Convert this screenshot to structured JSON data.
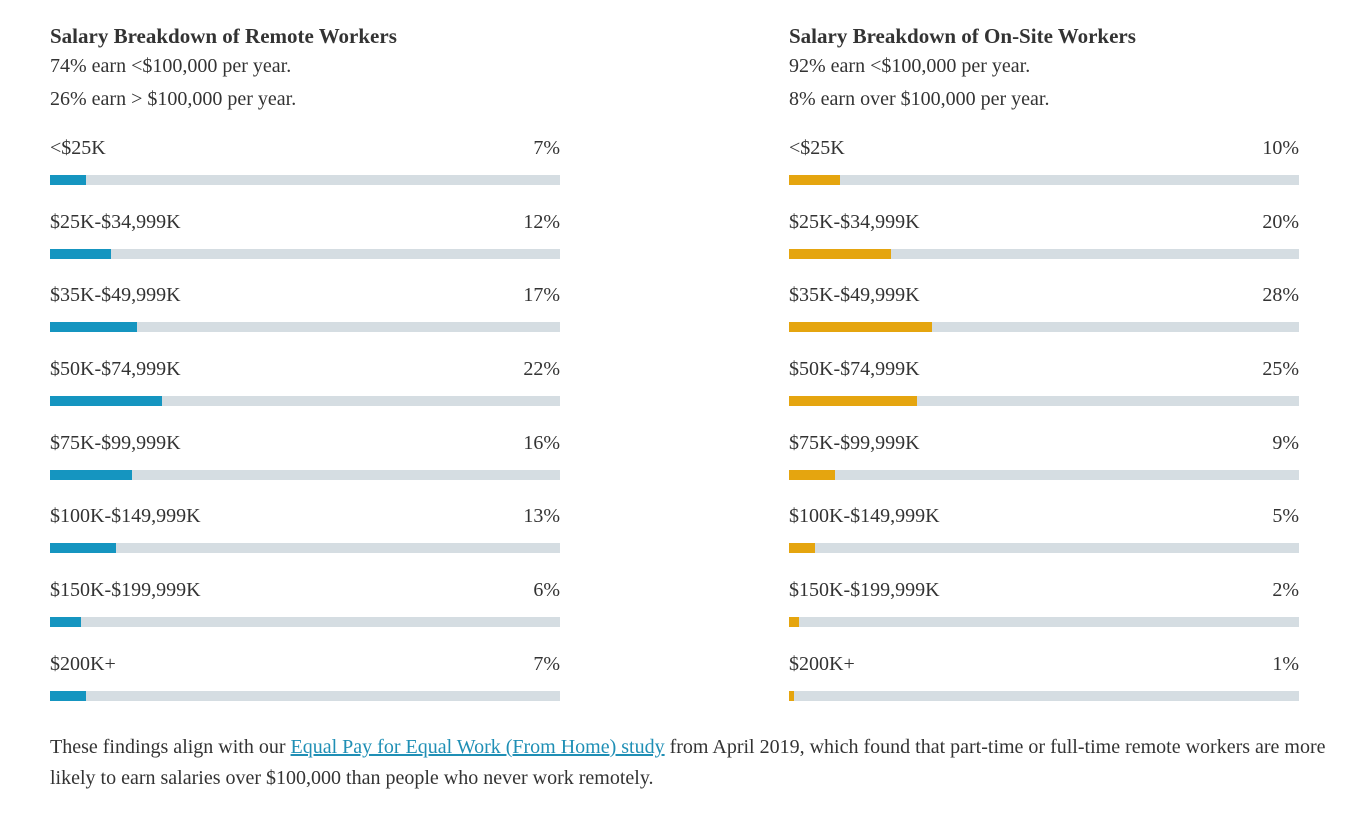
{
  "colors": {
    "remote": "#1595c0",
    "onsite": "#e5a50f",
    "track": "#d5dde2"
  },
  "chart_data": [
    {
      "type": "bar",
      "orientation": "horizontal",
      "title": "Salary Breakdown of Remote Workers",
      "summary": [
        "74% earn <$100,000 per year.",
        "26% earn > $100,000 per year."
      ],
      "categories": [
        "<$25K",
        "$25K-$34,999K",
        "$35K-$49,999K",
        "$50K-$74,999K",
        "$75K-$99,999K",
        "$100K-$149,999K",
        "$150K-$199,999K",
        "$200K+"
      ],
      "values": [
        7,
        12,
        17,
        22,
        16,
        13,
        6,
        7
      ],
      "labels": [
        "7%",
        "12%",
        "17%",
        "22%",
        "16%",
        "13%",
        "6%",
        "7%"
      ],
      "xlim": [
        0,
        100
      ],
      "unit": "%"
    },
    {
      "type": "bar",
      "orientation": "horizontal",
      "title": "Salary Breakdown of On-Site Workers",
      "summary": [
        "92% earn <$100,000 per year.",
        "8% earn over $100,000 per year."
      ],
      "categories": [
        "<$25K",
        "$25K-$34,999K",
        "$35K-$49,999K",
        "$50K-$74,999K",
        "$75K-$99,999K",
        "$100K-$149,999K",
        "$150K-$199,999K",
        "$200K+"
      ],
      "values": [
        10,
        20,
        28,
        25,
        9,
        5,
        2,
        1
      ],
      "labels": [
        "10%",
        "20%",
        "28%",
        "25%",
        "9%",
        "5%",
        "2%",
        "1%"
      ],
      "xlim": [
        0,
        100
      ],
      "unit": "%"
    }
  ],
  "footer": {
    "before": "These findings align with our ",
    "link_text": "Equal Pay for Equal Work (From Home) study",
    "after": " from April 2019, which found that part-time or full-time remote workers are more likely to earn salaries over $100,000 than people who never work remotely."
  }
}
